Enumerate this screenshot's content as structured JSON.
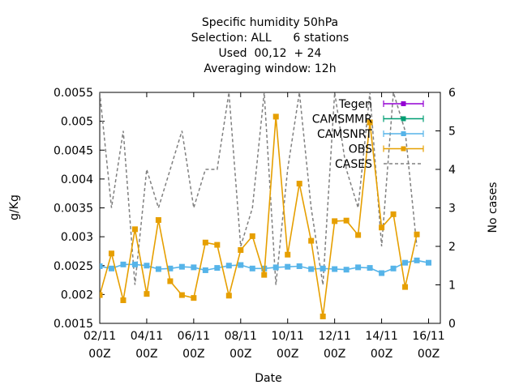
{
  "chart_data": {
    "type": "line",
    "title_lines": [
      "Specific humidity 50hPa",
      "Selection: ALL      6 stations",
      "Used  00,12  + 24",
      "Averaging window: 12h"
    ],
    "xlabel": "Date",
    "ylabel": "g/Kg",
    "y2label": "No cases",
    "ylim": [
      0.0015,
      0.0055
    ],
    "y2lim": [
      0,
      6
    ],
    "xlim": [
      0,
      29
    ],
    "yticks": [
      "0.0015",
      "0.002",
      "0.0025",
      "0.003",
      "0.0035",
      "0.004",
      "0.0045",
      "0.005",
      "0.0055"
    ],
    "y2ticks": [
      "0",
      "1",
      "2",
      "3",
      "4",
      "5",
      "6"
    ],
    "xticks": [
      {
        "x": 0,
        "line1": "02/11",
        "line2": "00Z"
      },
      {
        "x": 4,
        "line1": "04/11",
        "line2": "00Z"
      },
      {
        "x": 8,
        "line1": "06/11",
        "line2": "00Z"
      },
      {
        "x": 12,
        "line1": "08/11",
        "line2": "00Z"
      },
      {
        "x": 16,
        "line1": "10/11",
        "line2": "00Z"
      },
      {
        "x": 20,
        "line1": "12/11",
        "line2": "00Z"
      },
      {
        "x": 24,
        "line1": "14/11",
        "line2": "00Z"
      },
      {
        "x": 28,
        "line1": "16/11",
        "line2": "00Z"
      }
    ],
    "legend_position": "top-right",
    "series": [
      {
        "name": "Tegen",
        "color": "#9400d3",
        "style": "line-points",
        "values": []
      },
      {
        "name": "CAMSMMR",
        "color": "#009e73",
        "style": "line-points",
        "values": []
      },
      {
        "name": "CAMSNRT",
        "color": "#56b4e9",
        "style": "line-points",
        "axis": "y",
        "values": [
          0.00249,
          0.00245,
          0.00252,
          0.00252,
          0.0025,
          0.00244,
          0.00245,
          0.00248,
          0.00247,
          0.00242,
          0.00246,
          0.0025,
          0.00251,
          0.00245,
          0.00245,
          0.00247,
          0.00248,
          0.00249,
          0.00244,
          0.00245,
          0.00244,
          0.00243,
          0.00247,
          0.00246,
          0.00237,
          0.00245,
          0.00255,
          0.00259,
          0.00255
        ]
      },
      {
        "name": "OBS",
        "color": "#e69f00",
        "style": "line-points",
        "axis": "y",
        "values": [
          0.00199,
          0.00271,
          0.0019,
          0.00313,
          0.00201,
          0.00329,
          0.00223,
          0.00199,
          0.00194,
          0.0029,
          0.00286,
          0.00198,
          0.00277,
          0.00301,
          0.00234,
          0.00508,
          0.00269,
          0.00392,
          0.00293,
          0.00162,
          0.00327,
          0.00328,
          0.00303,
          0.00498,
          0.00316,
          0.00339,
          0.00213,
          0.00304
        ]
      },
      {
        "name": "CASES",
        "color": "#808080",
        "style": "dashed",
        "axis": "y2",
        "values": [
          6,
          3,
          5,
          1,
          4,
          3,
          4,
          5,
          3,
          4,
          4,
          6,
          2,
          3,
          6,
          1,
          4,
          6,
          3,
          1,
          6,
          4,
          3,
          6,
          2,
          6,
          5,
          2
        ]
      }
    ]
  }
}
